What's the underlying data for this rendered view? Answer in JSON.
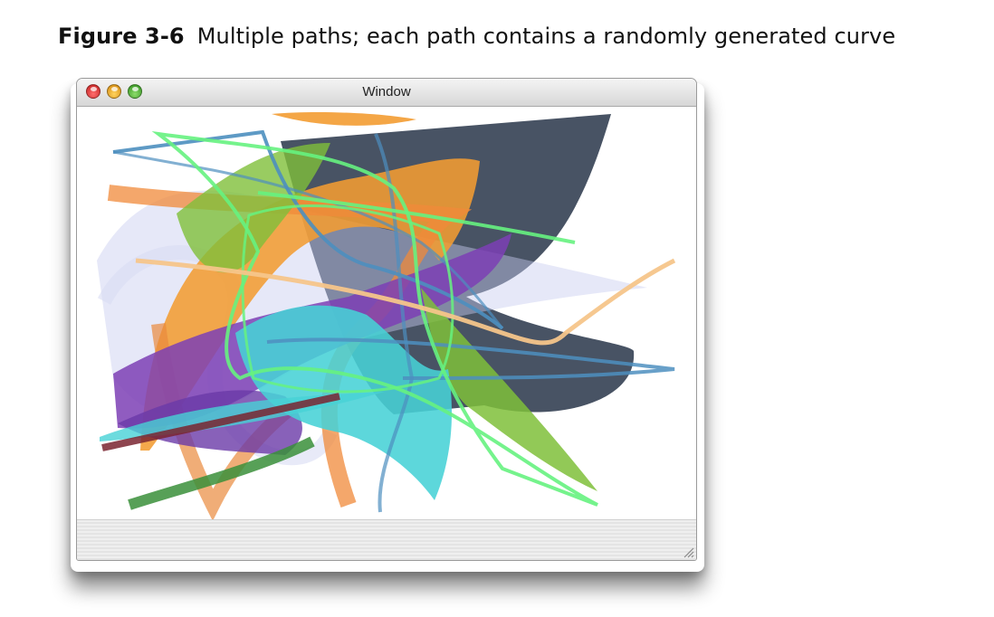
{
  "caption": {
    "figure_number": "Figure 3-6",
    "text": "Multiple paths; each path contains a randomly generated curve"
  },
  "window": {
    "title": "Window",
    "buttons": [
      "close",
      "minimize",
      "zoom"
    ],
    "icons": {
      "close": "close-icon",
      "minimize": "minimize-icon",
      "zoom": "zoom-icon",
      "resize": "resize-grip-icon"
    }
  },
  "colors": {
    "slate": "#3e4a5c",
    "orange": "#f39c32",
    "purple": "#7d3fb5",
    "cyan": "#47d2d6",
    "green": "#7fbf3a",
    "lime": "#66f27f",
    "steelblue": "#4d8fbf",
    "peach": "#f6c58a",
    "maroon": "#7a2530",
    "darkgreen": "#3a8f3a",
    "lavender": "#c7cdf0"
  }
}
